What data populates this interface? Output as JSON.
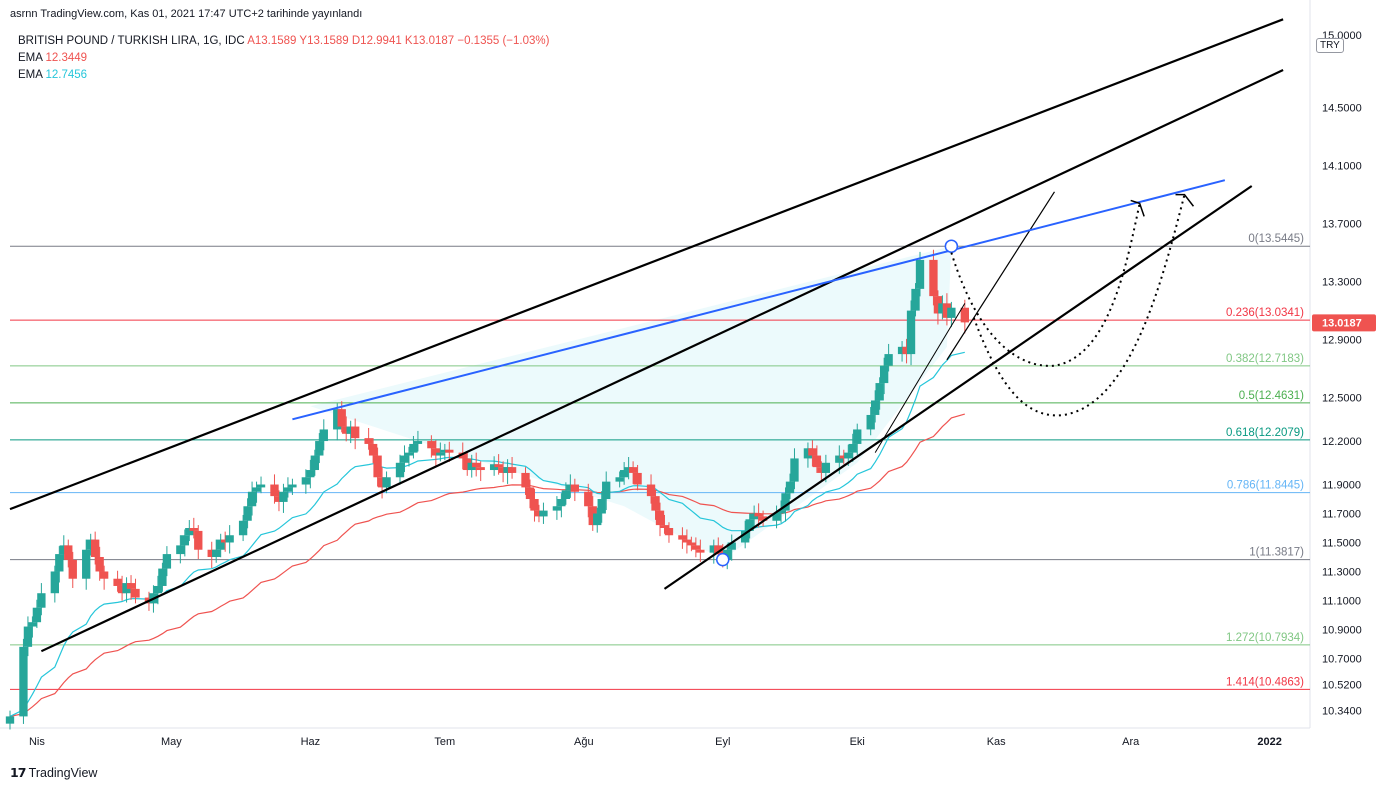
{
  "header": {
    "published": "asrnn TradingView.com, Kas 01, 2021 17:47 UTC+2 tarihinde yayınlandı"
  },
  "legend": {
    "symbol": "BRITISH POUND / TURKISH LIRA, 1G, IDC",
    "ohlc": "A13.1589  Y13.1589  D12.9941  K13.0187  −0.1355 (−1.03%)",
    "ema1_label": "EMA",
    "ema1_value": "12.3449",
    "ema2_label": "EMA",
    "ema2_value": "12.7456"
  },
  "currency_badge": "TRY",
  "brand": {
    "logo": "17",
    "name": "TradingView"
  },
  "colors": {
    "up": "#26a69a",
    "down": "#ef5350",
    "ema_slow": "#ef5350",
    "ema_fast": "#26c6da",
    "trend_blue": "#2962ff",
    "last_price_bg": "#ef5350"
  },
  "chart_data": {
    "type": "candlestick",
    "x_axis": {
      "ticks": [
        {
          "label": "Nis",
          "date": "2021-04-01"
        },
        {
          "label": "May",
          "date": "2021-05-01"
        },
        {
          "label": "Haz",
          "date": "2021-06-01"
        },
        {
          "label": "Tem",
          "date": "2021-07-01"
        },
        {
          "label": "Ağu",
          "date": "2021-08-01"
        },
        {
          "label": "Eyl",
          "date": "2021-09-01"
        },
        {
          "label": "Eki",
          "date": "2021-10-01"
        },
        {
          "label": "Kas",
          "date": "2021-11-01"
        },
        {
          "label": "Ara",
          "date": "2021-12-01"
        },
        {
          "label": "2022",
          "date": "2022-01-01"
        }
      ],
      "range": [
        "2021-03-26",
        "2022-01-10"
      ]
    },
    "y_axis": {
      "ticks": [
        "15.0000",
        "14.5000",
        "14.1000",
        "13.7000",
        "13.3000",
        "12.9000",
        "12.5000",
        "12.2000",
        "11.9000",
        "11.7000",
        "11.5000",
        "11.3000",
        "11.1000",
        "10.9000",
        "10.7000",
        "10.5200",
        "10.3400"
      ],
      "range": [
        10.22,
        15.05
      ]
    },
    "last_price": "13.0187",
    "fib_levels": [
      {
        "label": "0(13.5445)",
        "value": 13.5445,
        "color": "#787b86"
      },
      {
        "label": "0.236(13.0341)",
        "value": 13.0341,
        "color": "#f23645"
      },
      {
        "label": "0.382(12.7183)",
        "value": 12.7183,
        "color": "#81c784"
      },
      {
        "label": "0.5(12.4631)",
        "value": 12.4631,
        "color": "#4caf50"
      },
      {
        "label": "0.618(12.2079)",
        "value": 12.2079,
        "color": "#089981"
      },
      {
        "label": "0.786(11.8445)",
        "value": 11.8445,
        "color": "#64b5f6"
      },
      {
        "label": "1(11.3817)",
        "value": 11.3817,
        "color": "#787b86"
      },
      {
        "label": "1.272(10.7934)",
        "value": 10.7934,
        "color": "#81c784"
      },
      {
        "label": "1.414(10.4863)",
        "value": 10.4863,
        "color": "#f23645"
      }
    ],
    "closes": [
      10.3,
      10.78,
      10.92,
      10.95,
      11.05,
      11.15,
      11.3,
      11.42,
      11.48,
      11.38,
      11.25,
      11.45,
      11.52,
      11.4,
      11.3,
      11.25,
      11.2,
      11.15,
      11.22,
      11.18,
      11.12,
      11.08,
      11.15,
      11.2,
      11.32,
      11.42,
      11.48,
      11.55,
      11.6,
      11.58,
      11.45,
      11.4,
      11.45,
      11.52,
      11.5,
      11.55,
      11.65,
      11.75,
      11.85,
      11.88,
      11.9,
      11.82,
      11.78,
      11.85,
      11.88,
      11.9,
      11.95,
      12.0,
      12.1,
      12.2,
      12.28,
      12.42,
      12.3,
      12.25,
      12.3,
      12.22,
      12.18,
      12.1,
      11.95,
      11.88,
      11.95,
      12.05,
      12.1,
      12.12,
      12.18,
      12.2,
      12.15,
      12.1,
      12.12,
      12.14,
      12.12,
      12.08,
      12.0,
      12.05,
      12.02,
      12.0,
      12.04,
      12.02,
      11.98,
      12.02,
      11.98,
      11.88,
      11.8,
      11.72,
      11.68,
      11.72,
      11.75,
      11.8,
      11.86,
      11.9,
      11.85,
      11.75,
      11.62,
      11.7,
      11.8,
      11.92,
      11.95,
      12.0,
      12.02,
      11.98,
      11.9,
      11.82,
      11.72,
      11.62,
      11.6,
      11.55,
      11.52,
      11.5,
      11.48,
      11.45,
      11.43,
      11.48,
      11.42,
      11.38,
      11.45,
      11.5,
      11.58,
      11.66,
      11.7,
      11.68,
      11.65,
      11.7,
      11.72,
      11.84,
      11.92,
      12.08,
      12.15,
      12.1,
      12.02,
      11.98,
      12.05,
      12.1,
      12.08,
      12.12,
      12.18,
      12.28,
      12.38,
      12.48,
      12.6,
      12.72,
      12.8,
      12.85,
      12.8,
      13.1,
      13.25,
      13.45,
      13.2,
      13.08,
      13.15,
      13.05,
      13.12,
      13.0187
    ],
    "ema_fast": {
      "label": "EMA",
      "value": "12.7456"
    },
    "ema_slow": {
      "label": "EMA",
      "value": "12.3449"
    },
    "projection": [
      "Drop to ~12.72 then rise",
      "Drop to ~12.40 then rise"
    ]
  }
}
